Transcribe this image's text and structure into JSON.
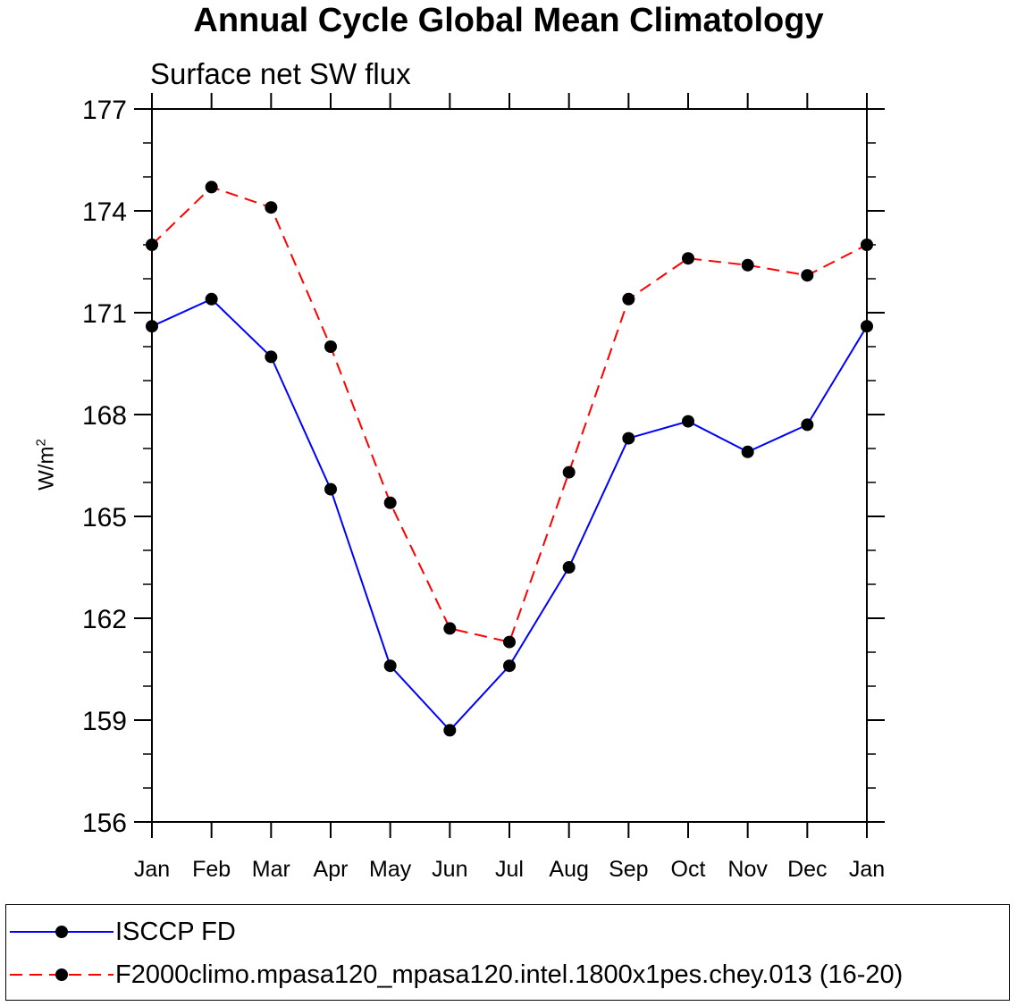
{
  "chart_data": {
    "type": "line",
    "title": "Annual Cycle Global Mean Climatology",
    "subtitle": "Surface net SW flux",
    "ylabel_text": "W/m",
    "ylabel_sup": "2",
    "xlabel": "",
    "categories": [
      "Jan",
      "Feb",
      "Mar",
      "Apr",
      "May",
      "Jun",
      "Jul",
      "Aug",
      "Sep",
      "Oct",
      "Nov",
      "Dec",
      "Jan"
    ],
    "ylim": [
      156,
      177
    ],
    "yticks": [
      156,
      159,
      162,
      165,
      168,
      171,
      174,
      177
    ],
    "series": [
      {
        "name": "ISCCP FD",
        "color": "#0000ff",
        "dash": "solid",
        "values": [
          170.6,
          171.4,
          169.7,
          165.8,
          160.6,
          158.7,
          160.6,
          163.5,
          167.3,
          167.8,
          166.9,
          167.7,
          170.6
        ]
      },
      {
        "name": "F2000climo.mpasa120_mpasa120.intel.1800x1pes.chey.013 (16-20)",
        "color": "#ff0000",
        "dash": "dashed",
        "values": [
          173.0,
          174.7,
          174.1,
          170.0,
          165.4,
          161.7,
          161.3,
          166.3,
          171.4,
          172.6,
          172.4,
          172.1,
          173.0
        ]
      }
    ]
  }
}
